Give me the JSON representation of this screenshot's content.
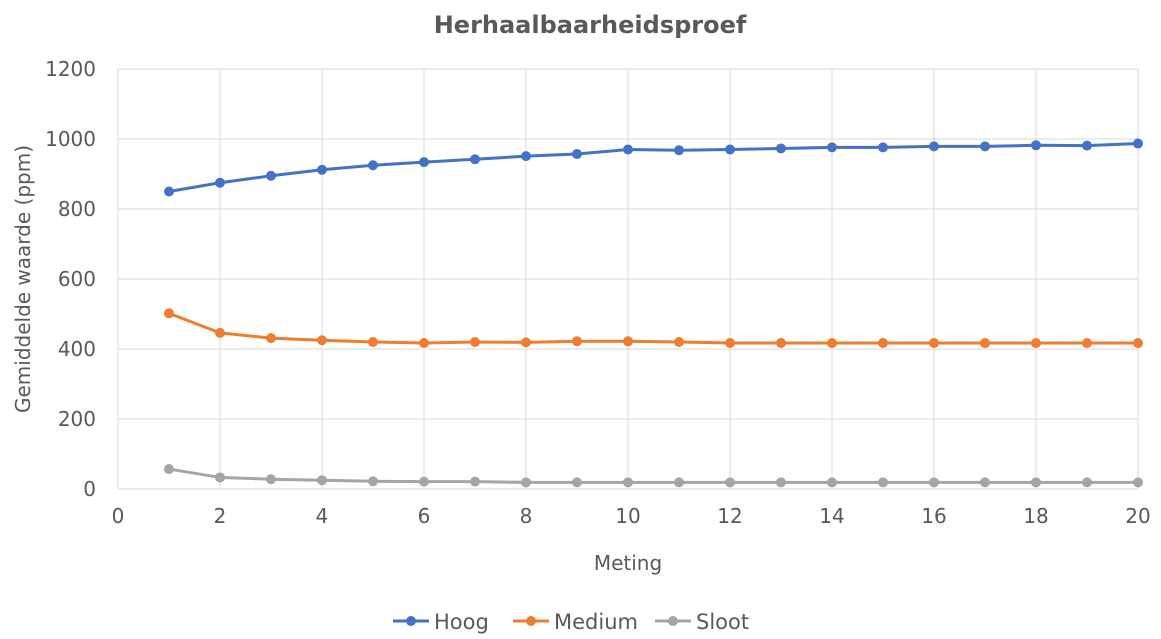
{
  "chart_data": {
    "type": "line",
    "title": "Herhaalbaarheidsproef",
    "xlabel": "Meting",
    "ylabel": "Gemiddelde waarde (ppm)",
    "xlim": [
      0,
      20
    ],
    "ylim": [
      0,
      1200
    ],
    "x_ticks": [
      0,
      2,
      4,
      6,
      8,
      10,
      12,
      14,
      16,
      18,
      20
    ],
    "y_ticks": [
      0,
      200,
      400,
      600,
      800,
      1000,
      1200
    ],
    "grid": true,
    "legend_position": "bottom",
    "x": [
      1,
      2,
      3,
      4,
      5,
      6,
      7,
      8,
      9,
      10,
      11,
      12,
      13,
      14,
      15,
      16,
      17,
      18,
      19,
      20
    ],
    "series": [
      {
        "name": "Hoog",
        "color": "#4472c4",
        "values": [
          850,
          875,
          895,
          912,
          925,
          934,
          942,
          951,
          957,
          970,
          968,
          970,
          973,
          976,
          976,
          979,
          979,
          982,
          981,
          987
        ]
      },
      {
        "name": "Medium",
        "color": "#ed7d31",
        "values": [
          502,
          446,
          431,
          425,
          420,
          417,
          420,
          419,
          422,
          422,
          420,
          417,
          417,
          417,
          417,
          417,
          417,
          417,
          417,
          417
        ]
      },
      {
        "name": "Sloot",
        "color": "#a5a5a5",
        "values": [
          57,
          33,
          28,
          25,
          22,
          21,
          21,
          19,
          19,
          19,
          19,
          19,
          19,
          19,
          19,
          19,
          19,
          19,
          19,
          19
        ]
      }
    ]
  }
}
